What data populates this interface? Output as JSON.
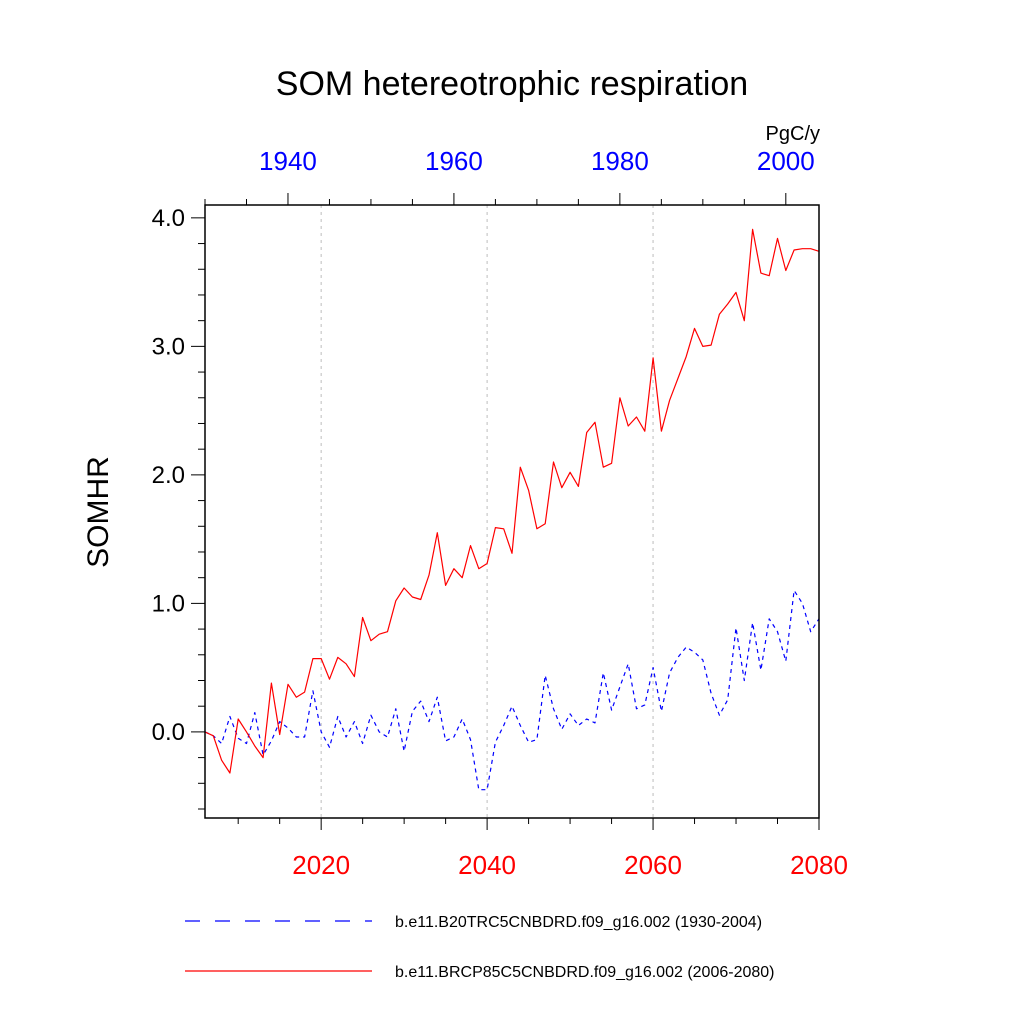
{
  "chart_data": {
    "type": "line",
    "title": "SOM hetereotrophic respiration",
    "units": "PgC/y",
    "ylabel": "SOMHR",
    "ylim": [
      -0.67,
      4.1
    ],
    "yticks": [
      0.0,
      1.0,
      2.0,
      3.0,
      4.0
    ],
    "ytick_labels": [
      "0.0",
      "1.0",
      "2.0",
      "3.0",
      "4.0"
    ],
    "bottom_axis": {
      "range": [
        2006,
        2080
      ],
      "ticks": [
        2020,
        2040,
        2060,
        2080
      ],
      "tick_labels": [
        "2020",
        "2040",
        "2060",
        "2080"
      ],
      "color": "#ff0000"
    },
    "top_axis": {
      "range": [
        1930,
        2004
      ],
      "ticks": [
        1940,
        1960,
        1980,
        2000
      ],
      "tick_labels": [
        "1940",
        "1960",
        "1980",
        "2000"
      ],
      "color": "#0000ff"
    },
    "grid": "vertical dotted at 2020, 2040, 2060",
    "legend": "bottom",
    "series": [
      {
        "name": "b.e11.B20TRC5CNBDRD.f09_g16.002 (1930-2004)",
        "color": "#0000ff",
        "dash": "dashed",
        "axis": "top",
        "x_start": 1930,
        "values": [
          0.0,
          -0.03,
          -0.09,
          0.12,
          -0.05,
          -0.09,
          0.15,
          -0.18,
          -0.07,
          0.08,
          0.03,
          -0.04,
          -0.04,
          0.32,
          0.0,
          -0.12,
          0.12,
          -0.04,
          0.08,
          -0.09,
          0.13,
          0.0,
          -0.04,
          0.18,
          -0.15,
          0.16,
          0.24,
          0.08,
          0.27,
          -0.07,
          -0.04,
          0.1,
          -0.06,
          -0.45,
          -0.45,
          -0.08,
          0.05,
          0.2,
          0.05,
          -0.08,
          -0.06,
          0.44,
          0.18,
          0.02,
          0.14,
          0.05,
          0.1,
          0.07,
          0.46,
          0.17,
          0.35,
          0.53,
          0.18,
          0.21,
          0.5,
          0.16,
          0.46,
          0.58,
          0.66,
          0.62,
          0.56,
          0.3,
          0.13,
          0.25,
          0.81,
          0.4,
          0.85,
          0.48,
          0.88,
          0.78,
          0.55,
          1.1,
          1.0,
          0.78,
          0.88
        ]
      },
      {
        "name": "b.e11.BRCP85C5CNBDRD.f09_g16.002 (2006-2080)",
        "color": "#ff0000",
        "dash": "solid",
        "axis": "bottom",
        "x_start": 2006,
        "values": [
          0.0,
          -0.03,
          -0.22,
          -0.32,
          0.1,
          0.0,
          -0.11,
          -0.2,
          0.38,
          -0.02,
          0.37,
          0.27,
          0.31,
          0.57,
          0.57,
          0.41,
          0.58,
          0.53,
          0.43,
          0.89,
          0.71,
          0.76,
          0.78,
          1.02,
          1.12,
          1.05,
          1.03,
          1.22,
          1.55,
          1.14,
          1.27,
          1.2,
          1.45,
          1.27,
          1.31,
          1.59,
          1.58,
          1.39,
          2.06,
          1.88,
          1.58,
          1.62,
          2.1,
          1.9,
          2.02,
          1.91,
          2.33,
          2.41,
          2.06,
          2.09,
          2.6,
          2.38,
          2.45,
          2.34,
          2.91,
          2.34,
          2.58,
          2.75,
          2.92,
          3.14,
          3.0,
          3.01,
          3.25,
          3.33,
          3.42,
          3.2,
          3.91,
          3.57,
          3.55,
          3.84,
          3.59,
          3.75,
          3.76,
          3.76,
          3.74
        ]
      }
    ]
  }
}
